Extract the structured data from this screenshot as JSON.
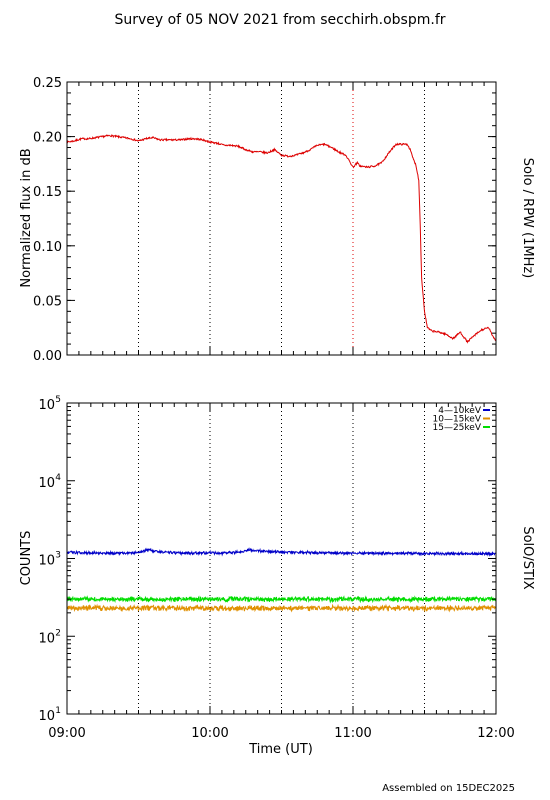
{
  "title": "Survey of 05 NOV 2021 from secchirh.obspm.fr",
  "footer": "Assembled on 15DEC2025",
  "colors": {
    "rpw_line": "#dd0000",
    "vline_dotted_black": "#000000",
    "vline_dotted_red": "#dd0000",
    "stix_4_10": "#0000c8",
    "stix_10_15": "#e09000",
    "stix_15_25": "#00dd00",
    "frame": "#000000"
  },
  "chart_data": [
    {
      "type": "line",
      "ylabel": "Normalized flux in dB",
      "right_label": "Solo / RPW (1MHz)",
      "xlim": [
        9.0,
        12.0
      ],
      "ylim": [
        0.0,
        0.25
      ],
      "y_ticks": [
        "0.25",
        "0.20",
        "0.15",
        "0.10",
        "0.05",
        "0.00"
      ],
      "y_tick_values": [
        0.25,
        0.2,
        0.15,
        0.1,
        0.05,
        0.0
      ],
      "x_tick_values": [
        9.0,
        10.0,
        11.0,
        12.0
      ],
      "vertical_markers": [
        {
          "x": 9.5,
          "color": "black"
        },
        {
          "x": 10.0,
          "color": "black"
        },
        {
          "x": 10.5,
          "color": "black"
        },
        {
          "x": 11.0,
          "color": "red"
        },
        {
          "x": 11.5,
          "color": "black"
        }
      ],
      "series": [
        {
          "color": "#dd0000",
          "x": [
            9.0,
            9.05,
            9.1,
            9.15,
            9.2,
            9.25,
            9.3,
            9.35,
            9.4,
            9.45,
            9.5,
            9.55,
            9.6,
            9.65,
            9.7,
            9.75,
            9.8,
            9.85,
            9.9,
            9.95,
            10.0,
            10.05,
            10.1,
            10.15,
            10.2,
            10.25,
            10.3,
            10.35,
            10.4,
            10.45,
            10.5,
            10.55,
            10.6,
            10.65,
            10.7,
            10.75,
            10.8,
            10.85,
            10.9,
            10.95,
            11.0,
            11.03,
            11.05,
            11.1,
            11.15,
            11.2,
            11.25,
            11.3,
            11.35,
            11.38,
            11.4,
            11.42,
            11.44,
            11.46,
            11.47,
            11.48,
            11.5,
            11.52,
            11.55,
            11.6,
            11.65,
            11.7,
            11.75,
            11.8,
            11.85,
            11.9,
            11.95,
            11.97,
            12.0
          ],
          "y": [
            0.195,
            0.196,
            0.198,
            0.198,
            0.199,
            0.2,
            0.201,
            0.2,
            0.199,
            0.198,
            0.196,
            0.198,
            0.199,
            0.197,
            0.197,
            0.197,
            0.197,
            0.198,
            0.198,
            0.197,
            0.195,
            0.194,
            0.192,
            0.192,
            0.191,
            0.188,
            0.186,
            0.186,
            0.185,
            0.188,
            0.183,
            0.182,
            0.183,
            0.185,
            0.188,
            0.192,
            0.193,
            0.19,
            0.186,
            0.183,
            0.172,
            0.176,
            0.173,
            0.172,
            0.173,
            0.176,
            0.185,
            0.193,
            0.193,
            0.193,
            0.188,
            0.18,
            0.174,
            0.16,
            0.12,
            0.07,
            0.04,
            0.025,
            0.022,
            0.021,
            0.019,
            0.015,
            0.021,
            0.012,
            0.018,
            0.023,
            0.025,
            0.019,
            0.013
          ]
        }
      ]
    },
    {
      "type": "line",
      "ylabel": "COUNTS",
      "right_label": "SolO/STIX",
      "xlabel": "Time (UT)",
      "xlim": [
        9.0,
        12.0
      ],
      "ylim": [
        10,
        100000
      ],
      "y_scale": "log",
      "y_tick_values": [
        10,
        100,
        1000,
        10000,
        100000
      ],
      "y_ticks": [
        {
          "base": "10",
          "exp": "1"
        },
        {
          "base": "10",
          "exp": "2"
        },
        {
          "base": "10",
          "exp": "3"
        },
        {
          "base": "10",
          "exp": "4"
        },
        {
          "base": "10",
          "exp": "5"
        }
      ],
      "x_ticks": [
        "09:00",
        "10:00",
        "11:00",
        "12:00"
      ],
      "x_tick_values": [
        9.0,
        10.0,
        11.0,
        12.0
      ],
      "vertical_markers": [
        {
          "x": 9.5,
          "color": "black"
        },
        {
          "x": 10.0,
          "color": "black"
        },
        {
          "x": 10.5,
          "color": "black"
        },
        {
          "x": 11.0,
          "color": "black"
        },
        {
          "x": 11.5,
          "color": "black"
        }
      ],
      "legend_placement": "top-right",
      "series": [
        {
          "name": "4—10keV",
          "color": "#0000c8",
          "x": [
            9.0,
            9.1,
            9.2,
            9.3,
            9.4,
            9.5,
            9.58,
            9.6,
            9.7,
            9.8,
            9.9,
            10.0,
            10.1,
            10.2,
            10.28,
            10.4,
            10.5,
            10.6,
            10.7,
            10.8,
            10.9,
            11.0,
            11.1,
            11.2,
            11.3,
            11.4,
            11.5,
            11.6,
            11.7,
            11.8,
            11.9,
            12.0
          ],
          "y": [
            1200,
            1190,
            1180,
            1170,
            1180,
            1190,
            1320,
            1250,
            1200,
            1180,
            1170,
            1180,
            1170,
            1210,
            1290,
            1230,
            1210,
            1200,
            1190,
            1180,
            1170,
            1170,
            1160,
            1170,
            1160,
            1170,
            1160,
            1160,
            1150,
            1160,
            1150,
            1150
          ]
        },
        {
          "name": "10—15keV",
          "color": "#e09000",
          "x": [
            9.0,
            9.1,
            9.2,
            9.3,
            9.4,
            9.5,
            9.6,
            9.7,
            9.8,
            9.9,
            10.0,
            10.1,
            10.2,
            10.3,
            10.4,
            10.5,
            10.6,
            10.7,
            10.8,
            10.9,
            11.0,
            11.1,
            11.2,
            11.3,
            11.4,
            11.5,
            11.6,
            11.7,
            11.8,
            11.9,
            12.0
          ],
          "y": [
            235,
            230,
            232,
            228,
            230,
            229,
            233,
            231,
            228,
            232,
            230,
            231,
            229,
            232,
            228,
            230,
            231,
            229,
            232,
            230,
            228,
            231,
            229,
            230,
            232,
            229,
            231,
            230,
            228,
            231,
            230
          ]
        },
        {
          "name": "15—25keV",
          "color": "#00dd00",
          "x": [
            9.0,
            9.1,
            9.2,
            9.3,
            9.4,
            9.5,
            9.6,
            9.7,
            9.8,
            9.9,
            10.0,
            10.1,
            10.2,
            10.3,
            10.4,
            10.5,
            10.6,
            10.7,
            10.8,
            10.9,
            11.0,
            11.1,
            11.2,
            11.3,
            11.4,
            11.5,
            11.6,
            11.7,
            11.8,
            11.9,
            12.0
          ],
          "y": [
            300,
            302,
            298,
            301,
            299,
            303,
            300,
            298,
            302,
            300,
            299,
            301,
            303,
            300,
            298,
            301,
            300,
            302,
            299,
            300,
            301,
            298,
            302,
            300,
            299,
            301,
            300,
            302,
            299,
            300,
            301
          ]
        }
      ]
    }
  ]
}
